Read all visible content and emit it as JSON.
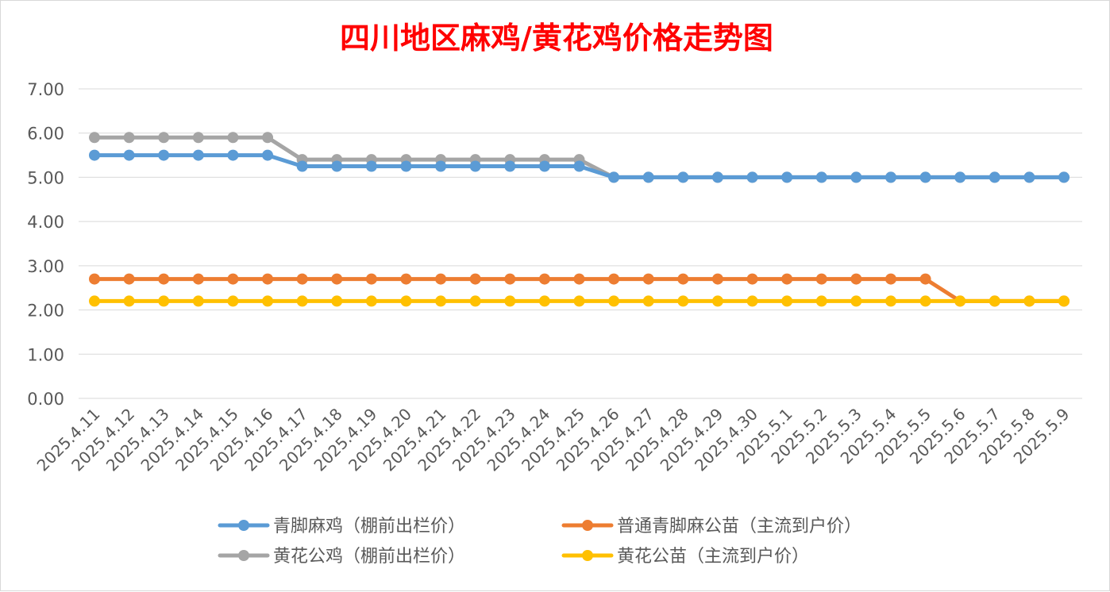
{
  "chart_data": {
    "type": "line",
    "title": "四川地区麻鸡/黄花鸡价格走势图",
    "xlabel": "",
    "ylabel": "",
    "ylim": [
      0,
      7
    ],
    "y_ticks": [
      "0.00",
      "1.00",
      "2.00",
      "3.00",
      "4.00",
      "5.00",
      "6.00",
      "7.00"
    ],
    "grid": true,
    "legend_position": "bottom",
    "categories": [
      "2025.4.11",
      "2025.4.12",
      "2025.4.13",
      "2025.4.14",
      "2025.4.15",
      "2025.4.16",
      "2025.4.17",
      "2025.4.18",
      "2025.4.19",
      "2025.4.20",
      "2025.4.21",
      "2025.4.22",
      "2025.4.23",
      "2025.4.24",
      "2025.4.25",
      "2025.4.26",
      "2025.4.27",
      "2025.4.28",
      "2025.4.29",
      "2025.4.30",
      "2025.5.1",
      "2025.5.2",
      "2025.5.3",
      "2025.5.4",
      "2025.5.5",
      "2025.5.6",
      "2025.5.7",
      "2025.5.8",
      "2025.5.9"
    ],
    "series": [
      {
        "name": "青脚麻鸡（棚前出栏价）",
        "color": "#5b9bd5",
        "values": [
          5.5,
          5.5,
          5.5,
          5.5,
          5.5,
          5.5,
          5.25,
          5.25,
          5.25,
          5.25,
          5.25,
          5.25,
          5.25,
          5.25,
          5.25,
          5.0,
          5.0,
          5.0,
          5.0,
          5.0,
          5.0,
          5.0,
          5.0,
          5.0,
          5.0,
          5.0,
          5.0,
          5.0,
          5.0
        ]
      },
      {
        "name": "普通青脚麻公苗（主流到户价）",
        "color": "#ed7d31",
        "values": [
          2.7,
          2.7,
          2.7,
          2.7,
          2.7,
          2.7,
          2.7,
          2.7,
          2.7,
          2.7,
          2.7,
          2.7,
          2.7,
          2.7,
          2.7,
          2.7,
          2.7,
          2.7,
          2.7,
          2.7,
          2.7,
          2.7,
          2.7,
          2.7,
          2.7,
          2.2,
          2.2,
          2.2,
          2.2
        ]
      },
      {
        "name": "黄花公鸡（棚前出栏价）",
        "color": "#a5a5a5",
        "values": [
          5.9,
          5.9,
          5.9,
          5.9,
          5.9,
          5.9,
          5.4,
          5.4,
          5.4,
          5.4,
          5.4,
          5.4,
          5.4,
          5.4,
          5.4,
          5.0,
          5.0,
          5.0,
          5.0,
          5.0,
          5.0,
          5.0,
          5.0,
          5.0,
          5.0,
          5.0,
          5.0,
          5.0,
          5.0
        ]
      },
      {
        "name": "黄花公苗（主流到户价）",
        "color": "#ffc000",
        "values": [
          2.2,
          2.2,
          2.2,
          2.2,
          2.2,
          2.2,
          2.2,
          2.2,
          2.2,
          2.2,
          2.2,
          2.2,
          2.2,
          2.2,
          2.2,
          2.2,
          2.2,
          2.2,
          2.2,
          2.2,
          2.2,
          2.2,
          2.2,
          2.2,
          2.2,
          2.2,
          2.2,
          2.2,
          2.2
        ]
      }
    ],
    "title_color": "#ff0000",
    "axis_text_color": "#595959",
    "grid_color": "#d9d9d9"
  }
}
